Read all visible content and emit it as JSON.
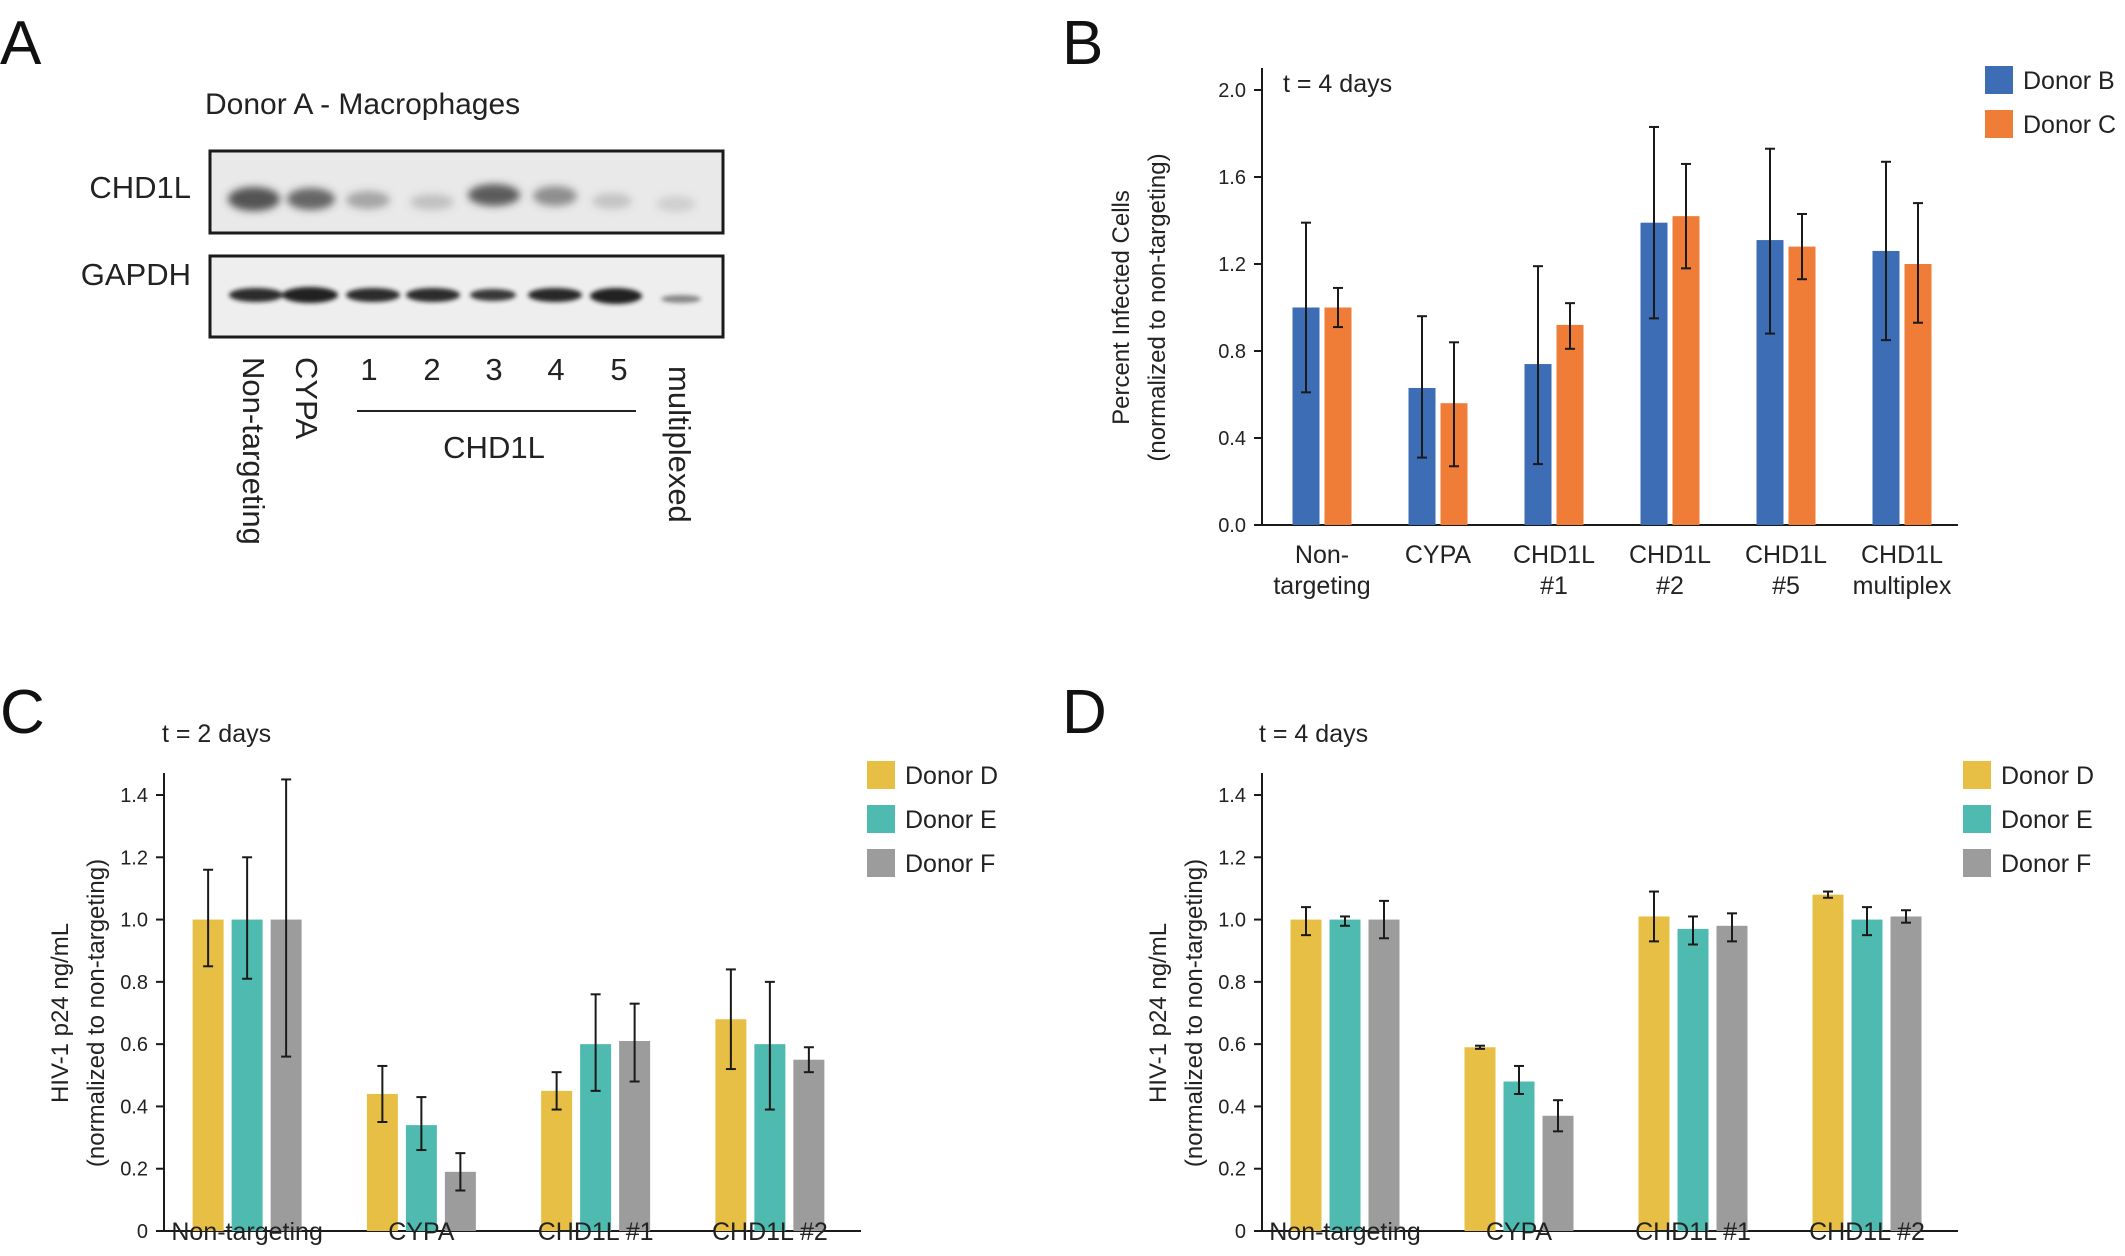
{
  "panel_labels": [
    "A",
    "B",
    "C",
    "D"
  ],
  "blot": {
    "title": "Donor A - Macrophages",
    "rows": [
      "CHD1L",
      "GAPDH"
    ],
    "lanes": [
      "Non-targeting",
      "CYPA",
      "1",
      "2",
      "3",
      "4",
      "5",
      "multiplexed"
    ],
    "group_label": "CHD1L"
  },
  "chart_data": [
    {
      "panel": "B",
      "type": "bar",
      "annotation": "t = 4 days",
      "ylabel": [
        "Percent Infected Cells",
        "(normalized to non-targeting)"
      ],
      "categories": [
        [
          "Non-",
          "targeting"
        ],
        [
          "CYPA"
        ],
        [
          "CHD1L",
          "#1"
        ],
        [
          "CHD1L",
          "#2"
        ],
        [
          "CHD1L",
          "#5"
        ],
        [
          "CHD1L",
          "multiplex"
        ]
      ],
      "ylim": [
        0,
        2.0
      ],
      "yticks": [
        "0.0",
        "0.4",
        "0.8",
        "1.2",
        "1.6",
        "2.0"
      ],
      "legend_position": "top-right",
      "series": [
        {
          "name": "Donor B",
          "color": "#3d6db5",
          "values": [
            1.0,
            0.63,
            0.74,
            1.39,
            1.31,
            1.26
          ],
          "err_low": [
            0.61,
            0.31,
            0.28,
            0.95,
            0.88,
            0.85
          ],
          "err_high": [
            1.39,
            0.96,
            1.19,
            1.83,
            1.73,
            1.67
          ]
        },
        {
          "name": "Donor C",
          "color": "#ef7d38",
          "values": [
            1.0,
            0.56,
            0.92,
            1.42,
            1.28,
            1.2
          ],
          "err_low": [
            0.91,
            0.27,
            0.81,
            1.18,
            1.13,
            0.93
          ],
          "err_high": [
            1.09,
            0.84,
            1.02,
            1.66,
            1.43,
            1.48
          ]
        }
      ]
    },
    {
      "panel": "C",
      "type": "bar",
      "annotation": "t = 2 days",
      "ylabel": [
        "HIV-1 p24 ng/mL",
        "(normalized to non-targeting)"
      ],
      "categories": [
        [
          "Non-targeting"
        ],
        [
          "CYPA"
        ],
        [
          "CHD1L #1"
        ],
        [
          "CHD1L #2"
        ]
      ],
      "ylim": [
        0,
        1.4
      ],
      "yticks": [
        "0",
        "0.2",
        "0.4",
        "0.6",
        "0.8",
        "1.0",
        "1.2",
        "1.4"
      ],
      "legend_position": "top-right",
      "series": [
        {
          "name": "Donor D",
          "color": "#e8bf45",
          "values": [
            1.0,
            0.44,
            0.45,
            0.68
          ],
          "err_low": [
            0.85,
            0.35,
            0.39,
            0.52
          ],
          "err_high": [
            1.16,
            0.53,
            0.51,
            0.84
          ]
        },
        {
          "name": "Donor E",
          "color": "#4fbab0",
          "values": [
            1.0,
            0.34,
            0.6,
            0.6
          ],
          "err_low": [
            0.81,
            0.26,
            0.45,
            0.39
          ],
          "err_high": [
            1.2,
            0.43,
            0.76,
            0.8
          ]
        },
        {
          "name": "Donor F",
          "color": "#9c9c9c",
          "values": [
            1.0,
            0.19,
            0.61,
            0.55
          ],
          "err_low": [
            0.56,
            0.13,
            0.48,
            0.51
          ],
          "err_high": [
            1.45,
            0.25,
            0.73,
            0.59
          ]
        }
      ]
    },
    {
      "panel": "D",
      "type": "bar",
      "annotation": "t = 4 days",
      "ylabel": [
        "HIV-1 p24 ng/mL",
        "(normalized to non-targeting)"
      ],
      "categories": [
        [
          "Non-targeting"
        ],
        [
          "CYPA"
        ],
        [
          "CHD1L #1"
        ],
        [
          "CHD1L #2"
        ]
      ],
      "ylim": [
        0,
        1.4
      ],
      "yticks": [
        "0",
        "0.2",
        "0.4",
        "0.6",
        "0.8",
        "1.0",
        "1.2",
        "1.4"
      ],
      "legend_position": "top-right",
      "series": [
        {
          "name": "Donor D",
          "color": "#e8bf45",
          "values": [
            1.0,
            0.59,
            1.01,
            1.08
          ],
          "err_low": [
            0.95,
            0.585,
            0.93,
            1.07
          ],
          "err_high": [
            1.04,
            0.595,
            1.09,
            1.09
          ]
        },
        {
          "name": "Donor E",
          "color": "#4fbab0",
          "values": [
            1.0,
            0.48,
            0.97,
            1.0
          ],
          "err_low": [
            0.98,
            0.44,
            0.92,
            0.95
          ],
          "err_high": [
            1.01,
            0.53,
            1.01,
            1.04
          ]
        },
        {
          "name": "Donor F",
          "color": "#9c9c9c",
          "values": [
            1.0,
            0.37,
            0.98,
            1.01
          ],
          "err_low": [
            0.94,
            0.32,
            0.93,
            0.99
          ],
          "err_high": [
            1.06,
            0.42,
            1.02,
            1.03
          ]
        }
      ]
    }
  ]
}
